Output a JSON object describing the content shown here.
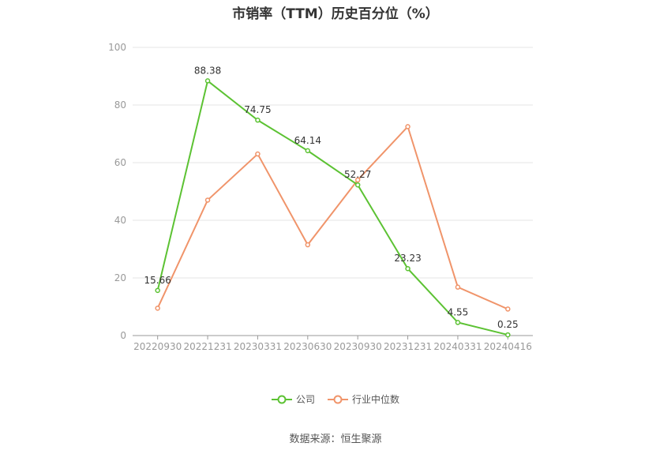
{
  "chart_data": {
    "type": "line",
    "title": "市销率（TTM）历史百分位（%）",
    "categories": [
      "20220930",
      "20221231",
      "20230331",
      "20230630",
      "20230930",
      "20231231",
      "20240331",
      "20240416"
    ],
    "series": [
      {
        "name": "公司",
        "color": "#5cc233",
        "values": [
          15.66,
          88.38,
          74.75,
          64.14,
          52.27,
          23.23,
          4.55,
          0.25
        ],
        "labels": [
          "15.66",
          "88.38",
          "74.75",
          "64.14",
          "52.27",
          "23.23",
          "4.55",
          "0.25"
        ]
      },
      {
        "name": "行业中位数",
        "color": "#f0946a",
        "values": [
          9.5,
          47.0,
          63.0,
          31.5,
          54.0,
          72.5,
          16.8,
          9.2
        ]
      }
    ],
    "ylim": [
      0,
      100
    ],
    "yticks": [
      "0",
      "20",
      "40",
      "60",
      "80",
      "100"
    ],
    "grid": true,
    "legend_position": "bottom"
  },
  "source": "数据来源：恒生聚源"
}
